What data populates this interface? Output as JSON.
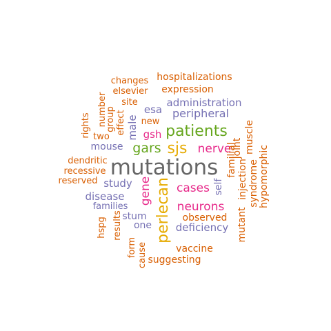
{
  "title": "word cloud",
  "palette": {
    "orange": "#D95F02",
    "purple": "#7570B3",
    "magenta": "#E7298A",
    "green": "#66A61E",
    "gold": "#E6AB02",
    "gray": "#666666"
  },
  "words": [
    {
      "text": "mutations",
      "color": "gray"
    },
    {
      "text": "patients",
      "color": "green"
    },
    {
      "text": "sjs",
      "color": "gold"
    },
    {
      "text": "gars",
      "color": "green"
    },
    {
      "text": "perlecan",
      "color": "gold"
    },
    {
      "text": "nerve",
      "color": "magenta"
    },
    {
      "text": "cases",
      "color": "magenta"
    },
    {
      "text": "neurons",
      "color": "magenta"
    },
    {
      "text": "gene",
      "color": "magenta"
    },
    {
      "text": "gsh",
      "color": "magenta"
    },
    {
      "text": "male",
      "color": "purple"
    },
    {
      "text": "esa",
      "color": "purple"
    },
    {
      "text": "peripheral",
      "color": "purple"
    },
    {
      "text": "administration",
      "color": "purple"
    },
    {
      "text": "study",
      "color": "purple"
    },
    {
      "text": "disease",
      "color": "purple"
    },
    {
      "text": "families",
      "color": "purple"
    },
    {
      "text": "mouse",
      "color": "purple"
    },
    {
      "text": "stum",
      "color": "purple"
    },
    {
      "text": "one",
      "color": "purple"
    },
    {
      "text": "deficiency",
      "color": "purple"
    },
    {
      "text": "self",
      "color": "purple"
    },
    {
      "text": "hospitalizations",
      "color": "orange"
    },
    {
      "text": "changes",
      "color": "orange"
    },
    {
      "text": "expression",
      "color": "orange"
    },
    {
      "text": "elsevier",
      "color": "orange"
    },
    {
      "text": "site",
      "color": "orange"
    },
    {
      "text": "new",
      "color": "orange"
    },
    {
      "text": "number",
      "color": "orange"
    },
    {
      "text": "group",
      "color": "orange"
    },
    {
      "text": "effect",
      "color": "orange"
    },
    {
      "text": "rights",
      "color": "orange"
    },
    {
      "text": "two",
      "color": "orange"
    },
    {
      "text": "dendritic",
      "color": "orange"
    },
    {
      "text": "recessive",
      "color": "orange"
    },
    {
      "text": "reserved",
      "color": "orange"
    },
    {
      "text": "hspg",
      "color": "orange"
    },
    {
      "text": "results",
      "color": "orange"
    },
    {
      "text": "form",
      "color": "orange"
    },
    {
      "text": "cause",
      "color": "orange"
    },
    {
      "text": "suggesting",
      "color": "orange"
    },
    {
      "text": "vaccine",
      "color": "orange"
    },
    {
      "text": "observed",
      "color": "orange"
    },
    {
      "text": "familial",
      "color": "orange"
    },
    {
      "text": "joint",
      "color": "orange"
    },
    {
      "text": "muscle",
      "color": "orange"
    },
    {
      "text": "injection",
      "color": "orange"
    },
    {
      "text": "mutant",
      "color": "orange"
    },
    {
      "text": "syndrome",
      "color": "orange"
    },
    {
      "text": "hypomorphic",
      "color": "orange"
    }
  ]
}
